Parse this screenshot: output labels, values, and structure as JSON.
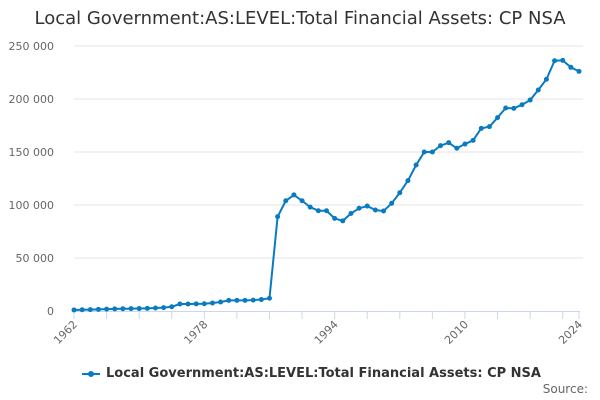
{
  "title": "Local Government:AS:LEVEL:Total Financial Assets: CP NSA",
  "source_label": "Source:",
  "colors": {
    "series": "#0a7bc1",
    "grid": "#e6e6e6",
    "axis": "#ccd6eb"
  },
  "chart_data": {
    "type": "line",
    "title": "Local Government:AS:LEVEL:Total Financial Assets: CP NSA",
    "xlabel": "",
    "ylabel": "",
    "xlim": [
      1962,
      2024
    ],
    "ylim": [
      0,
      250000
    ],
    "yticks": [
      0,
      50000,
      100000,
      150000,
      200000,
      250000
    ],
    "ytick_labels": [
      "0",
      "50 000",
      "100 000",
      "150 000",
      "200 000",
      "250 000"
    ],
    "xtick_labels": [
      "1962",
      "1978",
      "1994",
      "2010",
      "2024"
    ],
    "grid": true,
    "legend_position": "bottom",
    "series": [
      {
        "name": "Local Government:AS:LEVEL:Total Financial Assets: CP NSA",
        "x": [
          1962,
          1963,
          1964,
          1965,
          1966,
          1967,
          1968,
          1969,
          1970,
          1971,
          1972,
          1973,
          1974,
          1975,
          1976,
          1977,
          1978,
          1979,
          1980,
          1981,
          1982,
          1983,
          1984,
          1985,
          1986,
          1987,
          1988,
          1989,
          1990,
          1991,
          1992,
          1993,
          1994,
          1995,
          1996,
          1997,
          1998,
          1999,
          2000,
          2001,
          2002,
          2003,
          2004,
          2005,
          2006,
          2007,
          2008,
          2009,
          2010,
          2011,
          2012,
          2013,
          2014,
          2015,
          2016,
          2017,
          2018,
          2019,
          2020,
          2021,
          2022,
          2023,
          2024
        ],
        "values": [
          1000,
          1200,
          1300,
          1500,
          1800,
          2000,
          2100,
          2200,
          2300,
          2500,
          2800,
          3200,
          4000,
          6600,
          6600,
          6700,
          6800,
          7500,
          8500,
          10000,
          10000,
          10000,
          10300,
          10800,
          12000,
          89000,
          104000,
          109500,
          104000,
          98000,
          94600,
          94600,
          87400,
          85000,
          92000,
          96900,
          99000,
          95300,
          94300,
          101600,
          111600,
          123000,
          137700,
          150000,
          150000,
          156000,
          158800,
          153500,
          157500,
          161000,
          172300,
          173900,
          182400,
          191500,
          191200,
          194600,
          199000,
          208500,
          218600,
          236100,
          236400,
          229900,
          226100
        ]
      }
    ]
  }
}
